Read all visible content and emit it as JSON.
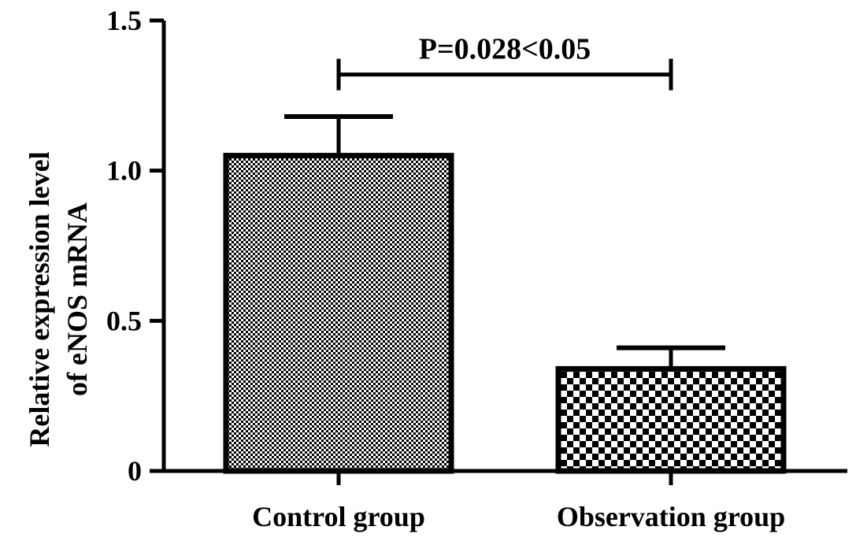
{
  "chart_data": {
    "type": "bar",
    "title": "",
    "xlabel": "",
    "ylabel": [
      "Relative expression level",
      "of eNOS mRNA"
    ],
    "categories": [
      "Control group",
      "Observation group"
    ],
    "values": [
      1.05,
      0.34
    ],
    "errors": [
      0.13,
      0.07
    ],
    "fill_patterns": [
      "fine-dots",
      "checkerboard"
    ],
    "ylim": [
      0,
      1.5
    ],
    "yticks": [
      {
        "value": 0,
        "label": "0"
      },
      {
        "value": 0.5,
        "label": "0.5"
      },
      {
        "value": 1.0,
        "label": "1.0"
      },
      {
        "value": 1.5,
        "label": "1.5"
      }
    ],
    "annotation": {
      "text": "P=0.028<0.05",
      "from": "Control group",
      "to": "Observation group",
      "level": 1.32
    },
    "grid": false,
    "legend": "none",
    "colors": {
      "bar_stroke": "#000000",
      "pattern_ink": "#000000",
      "background": "#ffffff"
    }
  }
}
